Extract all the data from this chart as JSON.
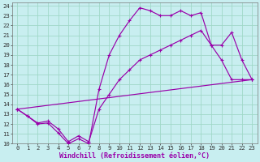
{
  "background_color": "#c8eef0",
  "grid_color": "#a0d8c8",
  "line_color": "#9900aa",
  "xlim": [
    -0.5,
    23.5
  ],
  "ylim": [
    10,
    24.3
  ],
  "xlabel": "Windchill (Refroidissement éolien,°C)",
  "yticks": [
    10,
    11,
    12,
    13,
    14,
    15,
    16,
    17,
    18,
    19,
    20,
    21,
    22,
    23,
    24
  ],
  "xticks": [
    0,
    1,
    2,
    3,
    4,
    5,
    6,
    7,
    8,
    9,
    10,
    11,
    12,
    13,
    14,
    15,
    16,
    17,
    18,
    19,
    20,
    21,
    22,
    23
  ],
  "series1_x": [
    0,
    1,
    2,
    3,
    4,
    5,
    6,
    7,
    8,
    9,
    10,
    11,
    12,
    13,
    14,
    15,
    16,
    17,
    18,
    19,
    20,
    21,
    22,
    23
  ],
  "series1_y": [
    13.5,
    12.8,
    12.0,
    12.1,
    11.1,
    10.0,
    10.5,
    10.0,
    15.5,
    19.0,
    21.0,
    22.5,
    23.8,
    23.5,
    23.0,
    23.0,
    23.5,
    23.0,
    23.3,
    20.0,
    18.5,
    16.5,
    16.5,
    16.5
  ],
  "series2_x": [
    0,
    1,
    2,
    3,
    4,
    5,
    6,
    7,
    8,
    9,
    10,
    11,
    12,
    13,
    14,
    15,
    16,
    17,
    18,
    19,
    20,
    21,
    22,
    23
  ],
  "series2_y": [
    13.5,
    12.8,
    12.1,
    12.3,
    11.5,
    10.2,
    10.8,
    10.2,
    13.5,
    15.0,
    16.5,
    17.5,
    18.5,
    19.0,
    19.5,
    20.0,
    20.5,
    21.0,
    21.5,
    20.0,
    20.0,
    21.3,
    18.5,
    16.5
  ],
  "series3_x": [
    0,
    23
  ],
  "series3_y": [
    13.5,
    16.5
  ],
  "tick_fontsize": 5.2,
  "xlabel_fontsize": 6.0
}
